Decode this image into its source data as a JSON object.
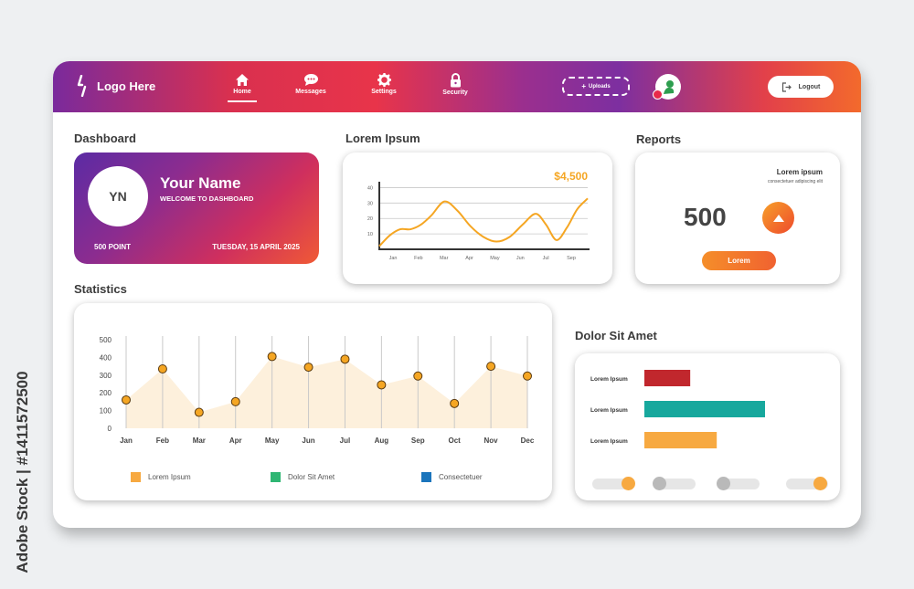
{
  "watermark": "Adobe Stock | #1411572500",
  "header": {
    "logo_text": "Logo Here",
    "nav": [
      {
        "label": "Home",
        "icon": "home-icon"
      },
      {
        "label": "Messages",
        "icon": "chat-icon"
      },
      {
        "label": "Settings",
        "icon": "gear-icon"
      },
      {
        "label": "Security",
        "icon": "lock-icon"
      }
    ],
    "uploads_label": "Uploads",
    "logout_label": "Logout"
  },
  "sections": {
    "dashboard": "Dashboard",
    "lorem": "Lorem Ipsum",
    "reports": "Reports",
    "statistics": "Statistics",
    "dolor": "Dolor Sit Amet"
  },
  "profile": {
    "initials": "YN",
    "name": "Your Name",
    "welcome": "WELCOME TO DASHBOARD",
    "points": "500 POINT",
    "date": "TUESDAY, 15 APRIL 2025"
  },
  "reports": {
    "title": "Lorem ipsum",
    "subtitle": "consectetuer adipiscing elit",
    "value": "500",
    "button_label": "Lorem",
    "accent": "#f58220"
  },
  "colors": {
    "orange": "#f7a941",
    "red": "#c1272d",
    "teal": "#17a89d",
    "green": "#2fb673",
    "blue": "#1b75bc"
  },
  "chart_data": [
    {
      "type": "line",
      "amount_label": "$4,500",
      "categories": [
        "Jan",
        "Feb",
        "Mar",
        "Apr",
        "May",
        "Jun",
        "Jul",
        "Sep"
      ],
      "y_ticks": [
        "40",
        "30",
        "20",
        "10"
      ],
      "ylim": [
        0,
        45
      ],
      "x": [
        0,
        0.4,
        0.8,
        1.2,
        1.6,
        2.0,
        2.5,
        3.0,
        3.5,
        4.0,
        4.5,
        5.0,
        5.5,
        6.0,
        6.4,
        6.8,
        7.2,
        7.6,
        8.0
      ],
      "values": [
        2,
        9,
        13,
        13,
        16,
        22,
        31,
        25,
        15,
        8,
        5,
        8,
        16,
        23,
        16,
        6,
        14,
        26,
        33
      ],
      "grid": true,
      "line_color": "#f5a623"
    },
    {
      "type": "area",
      "categories": [
        "Jan",
        "Feb",
        "Mar",
        "Apr",
        "May",
        "Jun",
        "Jul",
        "Aug",
        "Sep",
        "Oct",
        "Nov",
        "Dec"
      ],
      "y_ticks": [
        "500",
        "400",
        "300",
        "200",
        "100",
        "0"
      ],
      "ylim": [
        0,
        500
      ],
      "values": [
        160,
        335,
        90,
        150,
        405,
        345,
        390,
        245,
        295,
        140,
        350,
        295
      ],
      "legend": [
        "Lorem Ipsum",
        "Dolor Sit Amet",
        "Consectetuer"
      ],
      "legend_colors": [
        "#f7a941",
        "#2fb673",
        "#1b75bc"
      ],
      "fill_color": "#fdf0dc",
      "point_color": "#f5a623"
    },
    {
      "type": "bar",
      "orientation": "horizontal",
      "categories": [
        "Lorem Ipsum",
        "Lorem Ipsum",
        "Lorem Ipsum"
      ],
      "values": [
        38,
        100,
        60
      ],
      "colors": [
        "#c1272d",
        "#17a89d",
        "#f7a941"
      ]
    }
  ],
  "toggles": [
    {
      "on": true,
      "knob_color": "#f7a941"
    },
    {
      "on": false,
      "knob_color": "#b9b9b9"
    },
    {
      "on": false,
      "knob_color": "#b9b9b9"
    },
    {
      "on": true,
      "knob_color": "#f7a941"
    }
  ]
}
